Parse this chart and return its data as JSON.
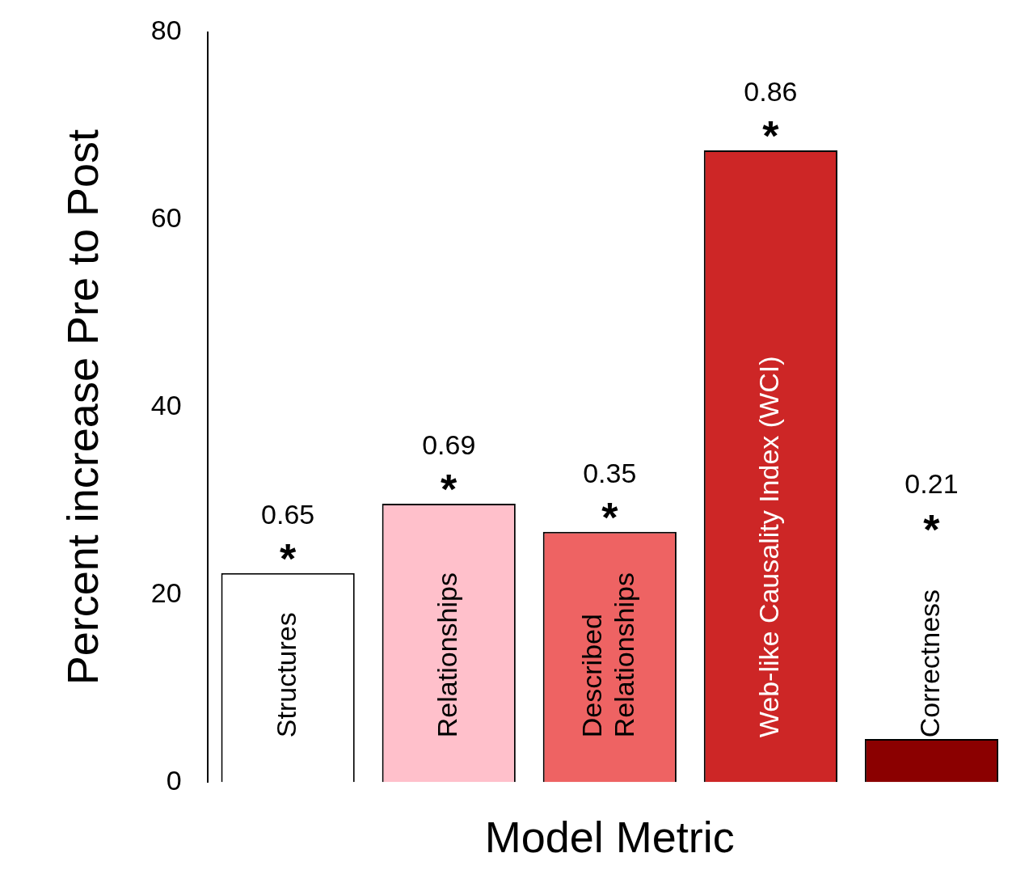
{
  "chart_data": {
    "type": "bar",
    "xlabel": "Model Metric",
    "ylabel": "Percent increase Pre to Post",
    "categories": [
      "Structures",
      "Relationships",
      "Described\nRelationships",
      "Web-like Causality Index (WCI)",
      "Correctness"
    ],
    "values": [
      22.3,
      29.7,
      26.7,
      67.4,
      4.6
    ],
    "colors": [
      "#ffffff",
      "#ffc0cb",
      "#ee6363",
      "#cd2626",
      "#8b0000"
    ],
    "ylim": [
      0,
      80
    ],
    "yticks": [
      0,
      20,
      40,
      60,
      80
    ],
    "grid": false,
    "legend": false,
    "annotations": [
      {
        "text": "0.65",
        "x": "Structures",
        "y": 22.3
      },
      {
        "text": "*",
        "x": "Structures",
        "y": 22.3
      },
      {
        "text": "0.69",
        "x": "Relationships",
        "y": 29.7
      },
      {
        "text": "*",
        "x": "Relationships",
        "y": 29.7
      },
      {
        "text": "0.35",
        "x": "Described\nRelationships",
        "y": 26.7
      },
      {
        "text": "*",
        "x": "Described\nRelationships",
        "y": 26.7
      },
      {
        "text": "0.86",
        "x": "Web-like Causality Index (WCI)",
        "y": 67.4
      },
      {
        "text": "*",
        "x": "Web-like Causality Index (WCI)",
        "y": 67.4
      },
      "0.21",
      "*"
    ]
  }
}
